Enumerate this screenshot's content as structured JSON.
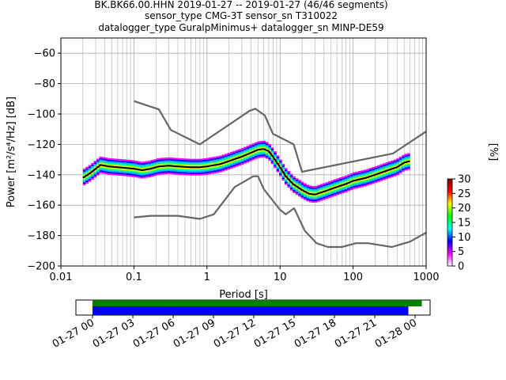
{
  "title_lines": [
    "BK.BK66.00.HHN   2019-01-27 -- 2019-01-27  (46/46 segments)",
    "sensor_type CMG-3T sensor_sn T310022",
    "datalogger_type GuralpMinimus+ datalogger_sn MINP-DE59"
  ],
  "chart_data": [
    {
      "type": "heatmap",
      "xlabel": "Period [s]",
      "ylabel": "Power [m²/s⁴/Hz] [dB]",
      "xscale": "log",
      "xlim": [
        0.01,
        1000
      ],
      "ylim": [
        -200,
        -50
      ],
      "grid": true,
      "x_ticks": [
        {
          "value": 0.01,
          "label": "0.01"
        },
        {
          "value": 0.1,
          "label": "0.1"
        },
        {
          "value": 1,
          "label": "1"
        },
        {
          "value": 10,
          "label": "10"
        },
        {
          "value": 100,
          "label": "100"
        },
        {
          "value": 1000,
          "label": "1000"
        }
      ],
      "y_ticks": [
        {
          "value": -60,
          "label": "−60"
        },
        {
          "value": -80,
          "label": "−80"
        },
        {
          "value": -100,
          "label": "−100"
        },
        {
          "value": -120,
          "label": "−120"
        },
        {
          "value": -140,
          "label": "−140"
        },
        {
          "value": -160,
          "label": "−160"
        },
        {
          "value": -180,
          "label": "−180"
        },
        {
          "value": -200,
          "label": "−200"
        }
      ],
      "series": [
        {
          "name": "",
          "color": "#666666",
          "values": [
            [
              0.1,
              -91.5
            ],
            [
              0.22,
              -97
            ],
            [
              0.32,
              -110.5
            ],
            [
              0.8,
              -120
            ],
            [
              3.8,
              -98
            ],
            [
              4.6,
              -96.5
            ],
            [
              6.2,
              -101
            ],
            [
              8,
              -113
            ],
            [
              15.4,
              -120
            ],
            [
              20,
              -138
            ],
            [
              350,
              -126
            ],
            [
              1000,
              -111.5
            ]
          ]
        },
        {
          "name": "",
          "color": "#666666",
          "values": [
            [
              0.1,
              -168
            ],
            [
              0.17,
              -167
            ],
            [
              0.4,
              -167
            ],
            [
              0.8,
              -169
            ],
            [
              1.24,
              -166
            ],
            [
              2.4,
              -148
            ],
            [
              4.3,
              -141
            ],
            [
              5,
              -141
            ],
            [
              6,
              -149.5
            ],
            [
              10,
              -163
            ],
            [
              12,
              -166
            ],
            [
              15.6,
              -162
            ],
            [
              21.9,
              -177
            ],
            [
              31.6,
              -185
            ],
            [
              45,
              -187.5
            ],
            [
              70,
              -187.5
            ],
            [
              110,
              -185
            ],
            [
              160,
              -185
            ],
            [
              339,
              -187.5
            ],
            [
              600,
              -184
            ],
            [
              1000,
              -178
            ]
          ]
        },
        {
          "name": "",
          "color": "#000000",
          "values": [
            [
              0.02,
              -142
            ],
            [
              0.025,
              -139
            ],
            [
              0.03,
              -136
            ],
            [
              0.035,
              -133.5
            ],
            [
              0.045,
              -134.5
            ],
            [
              0.06,
              -135
            ],
            [
              0.08,
              -135.5
            ],
            [
              0.1,
              -136
            ],
            [
              0.13,
              -137
            ],
            [
              0.17,
              -136
            ],
            [
              0.22,
              -134.5
            ],
            [
              0.3,
              -134
            ],
            [
              0.4,
              -134.5
            ],
            [
              0.6,
              -135
            ],
            [
              0.8,
              -135
            ],
            [
              1,
              -134.5
            ],
            [
              1.5,
              -133
            ],
            [
              2,
              -131
            ],
            [
              3,
              -128
            ],
            [
              4,
              -125.5
            ],
            [
              5,
              -123.5
            ],
            [
              6,
              -123
            ],
            [
              7,
              -124.5
            ],
            [
              8,
              -128
            ],
            [
              10,
              -135
            ],
            [
              12,
              -141
            ],
            [
              15,
              -146
            ],
            [
              20,
              -150
            ],
            [
              25,
              -152.5
            ],
            [
              30,
              -153
            ],
            [
              40,
              -151
            ],
            [
              60,
              -148
            ],
            [
              80,
              -146
            ],
            [
              100,
              -144
            ],
            [
              150,
              -142
            ],
            [
              200,
              -140
            ],
            [
              300,
              -137
            ],
            [
              400,
              -135
            ],
            [
              500,
              -132
            ],
            [
              600,
              -131
            ]
          ]
        }
      ],
      "heatmap_band": {
        "points": [
          [
            0.02,
            -142
          ],
          [
            0.025,
            -139
          ],
          [
            0.03,
            -136
          ],
          [
            0.035,
            -133.5
          ],
          [
            0.045,
            -134.5
          ],
          [
            0.06,
            -135
          ],
          [
            0.08,
            -135.5
          ],
          [
            0.1,
            -136
          ],
          [
            0.13,
            -137
          ],
          [
            0.17,
            -136
          ],
          [
            0.22,
            -134.5
          ],
          [
            0.3,
            -134
          ],
          [
            0.4,
            -134.5
          ],
          [
            0.6,
            -135
          ],
          [
            0.8,
            -135
          ],
          [
            1,
            -134.5
          ],
          [
            1.5,
            -133
          ],
          [
            2,
            -131
          ],
          [
            3,
            -128
          ],
          [
            4,
            -125.5
          ],
          [
            5,
            -123.5
          ],
          [
            6,
            -123
          ],
          [
            7,
            -124.5
          ],
          [
            8,
            -128
          ],
          [
            10,
            -135
          ],
          [
            12,
            -141
          ],
          [
            15,
            -146
          ],
          [
            20,
            -150
          ],
          [
            25,
            -152.5
          ],
          [
            30,
            -153
          ],
          [
            40,
            -151
          ],
          [
            60,
            -148
          ],
          [
            80,
            -146
          ],
          [
            100,
            -144
          ],
          [
            150,
            -142
          ],
          [
            200,
            -140
          ],
          [
            300,
            -137
          ],
          [
            400,
            -135
          ],
          [
            500,
            -132
          ],
          [
            600,
            -131
          ]
        ],
        "spread_db": 5,
        "colors": [
          "#ff00ff",
          "#0000ff",
          "#00aaff",
          "#00ff88",
          "#ccff00",
          "#ff0000"
        ]
      },
      "colorbar": {
        "label": "[%]",
        "range": [
          0,
          30
        ],
        "ticks": [
          {
            "value": 0,
            "label": "0"
          },
          {
            "value": 5,
            "label": "5"
          },
          {
            "value": 10,
            "label": "10"
          },
          {
            "value": 15,
            "label": "15"
          },
          {
            "value": 20,
            "label": "20"
          },
          {
            "value": 25,
            "label": "25"
          },
          {
            "value": 30,
            "label": "30"
          }
        ],
        "colormap": [
          "#ffffff",
          "#ff00ff",
          "#0000ff",
          "#00ffff",
          "#00ff00",
          "#ffff00",
          "#ff0000",
          "#800000"
        ]
      }
    },
    {
      "type": "bar",
      "xlabel": "",
      "ylabel": "",
      "x_ticks": [
        "01-27 00",
        "01-27 03",
        "01-27 06",
        "01-27 09",
        "01-27 12",
        "01-27 15",
        "01-27 18",
        "01-27 21",
        "01-28 00"
      ],
      "series": [
        {
          "name": "",
          "color": "#008000",
          "start": "01-27 00:00",
          "end": "01-28 00:30"
        },
        {
          "name": "",
          "color": "#0000ff",
          "start": "01-27 00:00",
          "end": "01-27 23:30"
        }
      ]
    }
  ]
}
